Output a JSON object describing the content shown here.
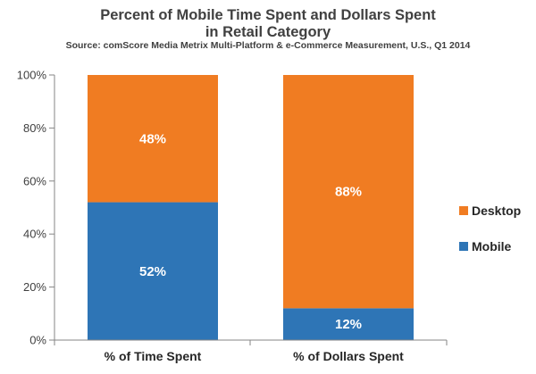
{
  "chart_data": {
    "type": "bar",
    "stacked": true,
    "percent_stacked": true,
    "title_lines": [
      "Percent of Mobile Time Spent and Dollars Spent",
      "in Retail Category"
    ],
    "subtitle": "Source: comScore Media Metrix Multi-Platform & e-Commerce Measurement, U.S., Q1 2014",
    "categories": [
      "%  of Time Spent",
      "%  of Dollars Spent"
    ],
    "series": [
      {
        "name": "Mobile",
        "color": "#2e75b6",
        "values": [
          52,
          12
        ],
        "labels": [
          "52%",
          "12%"
        ]
      },
      {
        "name": "Desktop",
        "color": "#f07c22",
        "values": [
          48,
          88
        ],
        "labels": [
          "48%",
          "88%"
        ]
      }
    ],
    "ylim": [
      0,
      100
    ],
    "yticks": [
      0,
      20,
      40,
      60,
      80,
      100
    ],
    "ytick_labels": [
      "0%",
      "20%",
      "40%",
      "60%",
      "80%",
      "100%"
    ],
    "xlabel": "",
    "ylabel": "",
    "grid": false,
    "legend_position": "right",
    "legend_order": [
      "Desktop",
      "Mobile"
    ]
  }
}
